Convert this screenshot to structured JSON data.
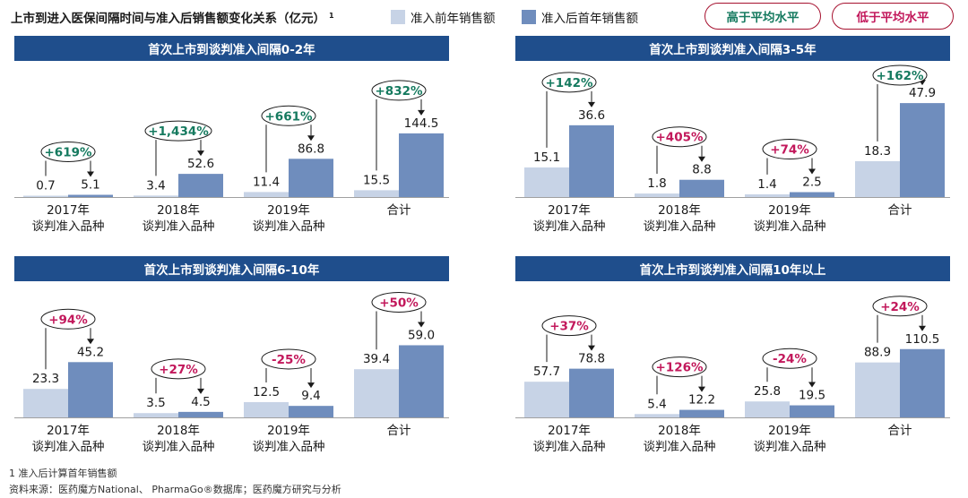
{
  "header": {
    "title": "上市到进入医保间隔时间与准入后销售额变化关系（亿元）",
    "title_sup": "1"
  },
  "legend": {
    "before_label": "准入前年销售额",
    "after_label": "准入后首年销售额",
    "above_avg_label": "高于平均水平",
    "below_avg_label": "低于平均水平"
  },
  "colors": {
    "before": "#c7d3e6",
    "after": "#6f8dbd",
    "above": "#157a5f",
    "below": "#c2185b",
    "panel_header": "#1f4e8c"
  },
  "chart_data": [
    {
      "type": "bar",
      "title": "首次上市到谈判准入间隔0-2年",
      "categories": [
        "2017年\n谈判准入品种",
        "2018年\n谈判准入品种",
        "2019年\n谈判准入品种",
        "合计"
      ],
      "series": [
        {
          "name": "准入前年销售额",
          "values": [
            0.7,
            3.4,
            11.4,
            15.5
          ]
        },
        {
          "name": "准入后首年销售额",
          "values": [
            5.1,
            52.6,
            86.8,
            144.5
          ]
        }
      ],
      "value_labels": {
        "before": [
          "0.7",
          "3.4",
          "11.4",
          "15.5"
        ],
        "after": [
          "5.1",
          "52.6",
          "86.8",
          "144.5"
        ]
      },
      "changes": [
        {
          "text": "+619%",
          "level": "above"
        },
        {
          "text": "+1,434%",
          "level": "above"
        },
        {
          "text": "+661%",
          "level": "above"
        },
        {
          "text": "+832%",
          "level": "above"
        }
      ]
    },
    {
      "type": "bar",
      "title": "首次上市到谈判准入间隔3-5年",
      "categories": [
        "2017年\n谈判准入品种",
        "2018年\n谈判准入品种",
        "2019年\n谈判准入品种",
        "合计"
      ],
      "series": [
        {
          "name": "准入前年销售额",
          "values": [
            15.1,
            1.8,
            1.4,
            18.3
          ]
        },
        {
          "name": "准入后首年销售额",
          "values": [
            36.6,
            8.8,
            2.5,
            47.9
          ]
        }
      ],
      "value_labels": {
        "before": [
          "15.1",
          "1.8",
          "1.4",
          "18.3"
        ],
        "after": [
          "36.6",
          "8.8",
          "2.5",
          "47.9"
        ]
      },
      "changes": [
        {
          "text": "+142%",
          "level": "above"
        },
        {
          "text": "+405%",
          "level": "below"
        },
        {
          "text": "+74%",
          "level": "below"
        },
        {
          "text": "+162%",
          "level": "above"
        }
      ]
    },
    {
      "type": "bar",
      "title": "首次上市到谈判准入间隔6-10年",
      "categories": [
        "2017年\n谈判准入品种",
        "2018年\n谈判准入品种",
        "2019年\n谈判准入品种",
        "合计"
      ],
      "series": [
        {
          "name": "准入前年销售额",
          "values": [
            23.3,
            3.5,
            12.5,
            39.4
          ]
        },
        {
          "name": "准入后首年销售额",
          "values": [
            45.2,
            4.5,
            9.4,
            59.0
          ]
        }
      ],
      "value_labels": {
        "before": [
          "23.3",
          "3.5",
          "12.5",
          "39.4"
        ],
        "after": [
          "45.2",
          "4.5",
          "9.4",
          "59.0"
        ]
      },
      "changes": [
        {
          "text": "+94%",
          "level": "below"
        },
        {
          "text": "+27%",
          "level": "below"
        },
        {
          "text": "-25%",
          "level": "below"
        },
        {
          "text": "+50%",
          "level": "below"
        }
      ]
    },
    {
      "type": "bar",
      "title": "首次上市到谈判准入间隔10年以上",
      "categories": [
        "2017年\n谈判准入品种",
        "2018年\n谈判准入品种",
        "2019年\n谈判准入品种",
        "合计"
      ],
      "series": [
        {
          "name": "准入前年销售额",
          "values": [
            57.7,
            5.4,
            25.8,
            88.9
          ]
        },
        {
          "name": "准入后首年销售额",
          "values": [
            78.8,
            12.2,
            19.5,
            110.5
          ]
        }
      ],
      "value_labels": {
        "before": [
          "57.7",
          "5.4",
          "25.8",
          "88.9"
        ],
        "after": [
          "78.8",
          "12.2",
          "19.5",
          "110.5"
        ]
      },
      "changes": [
        {
          "text": "+37%",
          "level": "below"
        },
        {
          "text": "+126%",
          "level": "below"
        },
        {
          "text": "-24%",
          "level": "below"
        },
        {
          "text": "+24%",
          "level": "below"
        }
      ]
    }
  ],
  "footnotes": {
    "note1": "1 准入后计算首年销售额",
    "source": "资料来源：医药魔方National、 PharmaGo®数据库；医药魔方研究与分析"
  }
}
